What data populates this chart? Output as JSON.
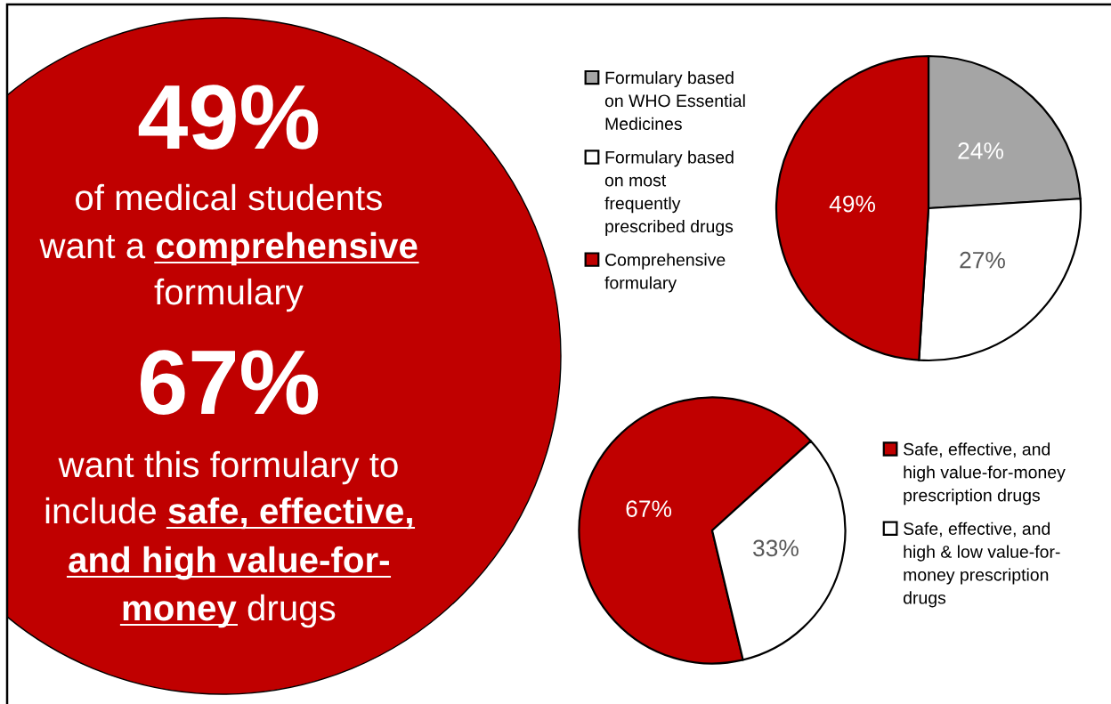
{
  "chart_data": [
    {
      "type": "other",
      "annotations": [
        "49%",
        "of medical students",
        "want a",
        "comprehensive",
        "formulary",
        "67%",
        "want this formulary to",
        "include",
        "safe, effective,",
        "and high value-for-",
        "money",
        "drugs"
      ]
    },
    {
      "type": "pie",
      "categories": [
        "Formulary based\non WHO Essential\nMedicines",
        "Formulary based\non most\nfrequently\nprescribed drugs",
        "Comprehensive\nformulary"
      ],
      "values": [
        24,
        27,
        49
      ],
      "colors": [
        "#a5a5a5",
        "#ffffff",
        "#c00000"
      ],
      "value_labels": [
        "24%",
        "27%",
        "49%"
      ],
      "legend": "left"
    },
    {
      "type": "pie",
      "categories": [
        "Safe, effective, and\nhigh value-for-money\nprescription drugs",
        "Safe, effective, and\nhigh & low value-for-\nmoney prescription\ndrugs"
      ],
      "values": [
        67,
        33
      ],
      "colors": [
        "#c00000",
        "#ffffff"
      ],
      "value_labels": [
        "67%",
        "33%"
      ],
      "legend": "right"
    }
  ]
}
